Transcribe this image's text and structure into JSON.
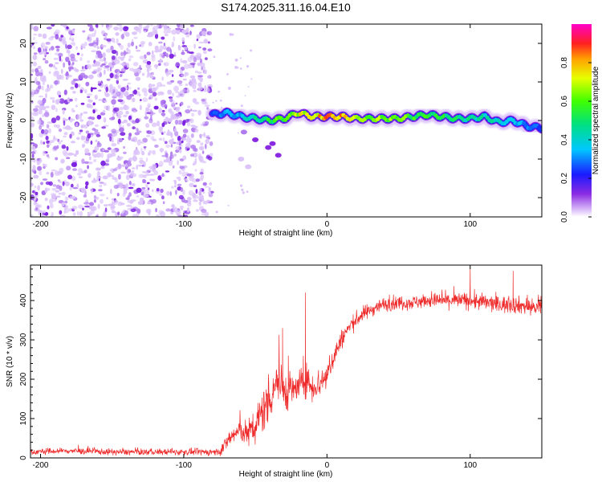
{
  "title": "S174.2025.311.16.04.E10",
  "colors": {
    "snr_line": "#ee2a2a",
    "noise_purple": "#8a2be2",
    "frame": "#000000"
  },
  "chart_data": [
    {
      "type": "heatmap",
      "title": "S174.2025.311.16.04.E10",
      "xlabel": "Height of straight line (km)",
      "ylabel": "Frequency (Hz)",
      "xlim": [
        -207,
        150
      ],
      "ylim": [
        -25,
        25
      ],
      "xticks": [
        -200,
        -100,
        0,
        100
      ],
      "xtick_labels": [
        "-200",
        "-100",
        "0",
        "100"
      ],
      "yticks": [
        -20,
        -10,
        0,
        10,
        20
      ],
      "ytick_labels": [
        "-20",
        "-10",
        "0",
        "10",
        "20"
      ],
      "noise_region_x": [
        -207,
        -80
      ],
      "signal_track": {
        "x": [
          -80,
          -70,
          -60,
          -50,
          -40,
          -30,
          -20,
          -10,
          0,
          10,
          20,
          30,
          40,
          50,
          60,
          70,
          80,
          90,
          100,
          110,
          120,
          130,
          140,
          150
        ],
        "frequency": [
          1.5,
          2.0,
          1.0,
          0.5,
          0.0,
          0.5,
          2.0,
          1.0,
          1.0,
          1.0,
          0.5,
          0.5,
          0.5,
          0.5,
          1.0,
          1.5,
          1.0,
          0.5,
          0.5,
          1.0,
          -0.5,
          0.0,
          -1.5,
          -2.0
        ],
        "amplitude": [
          0.3,
          0.35,
          0.4,
          0.5,
          0.6,
          0.7,
          0.8,
          0.85,
          0.95,
          0.95,
          0.8,
          0.75,
          0.7,
          0.7,
          0.65,
          0.65,
          0.6,
          0.55,
          0.5,
          0.5,
          0.45,
          0.4,
          0.35,
          0.3
        ]
      },
      "colorbar": {
        "label": "Normalized spectral amplitude",
        "range": [
          0,
          1
        ],
        "ticks": [
          0.0,
          0.2,
          0.4,
          0.6,
          0.8
        ],
        "tick_labels": [
          "0.0",
          "0.2",
          "0.4",
          "0.6",
          "0.8"
        ],
        "colormap": "rainbow (white-purple-blue-cyan-green-yellow-red-magenta)"
      }
    },
    {
      "type": "line",
      "xlabel": "Height of straight line (km)",
      "ylabel": "SNR (10 * v/v)",
      "xlim": [
        -207,
        150
      ],
      "ylim": [
        0,
        490
      ],
      "xticks": [
        -200,
        -100,
        0,
        100
      ],
      "xtick_labels": [
        "-200",
        "-100",
        "0",
        "100"
      ],
      "yticks": [
        0,
        100,
        200,
        300,
        400
      ],
      "ytick_labels": [
        "0",
        "100",
        "200",
        "300",
        "400"
      ],
      "series": [
        {
          "name": "SNR",
          "x": [
            -207,
            -180,
            -150,
            -120,
            -90,
            -75,
            -70,
            -65,
            -60,
            -55,
            -50,
            -45,
            -40,
            -35,
            -30,
            -25,
            -20,
            -15,
            -10,
            -5,
            0,
            5,
            10,
            15,
            20,
            25,
            30,
            35,
            40,
            50,
            60,
            70,
            80,
            90,
            100,
            110,
            120,
            130,
            140,
            150
          ],
          "values": [
            15,
            18,
            15,
            15,
            15,
            15,
            40,
            60,
            70,
            60,
            80,
            120,
            150,
            200,
            170,
            170,
            180,
            200,
            180,
            190,
            210,
            260,
            300,
            330,
            350,
            365,
            375,
            385,
            390,
            395,
            395,
            400,
            400,
            400,
            400,
            395,
            390,
            390,
            385,
            380
          ],
          "spread": [
            8,
            8,
            8,
            8,
            8,
            10,
            20,
            25,
            30,
            35,
            50,
            60,
            60,
            60,
            50,
            45,
            40,
            40,
            40,
            40,
            35,
            30,
            25,
            20,
            20,
            20,
            18,
            18,
            18,
            18,
            18,
            18,
            20,
            20,
            22,
            22,
            22,
            22,
            22,
            22
          ],
          "spikes": [
            {
              "x": -31,
              "value": 330
            },
            {
              "x": -15,
              "value": 420
            },
            {
              "x": -27,
              "value": 260
            },
            {
              "x": 100,
              "value": 480
            },
            {
              "x": 130,
              "value": 475
            }
          ]
        }
      ]
    }
  ]
}
